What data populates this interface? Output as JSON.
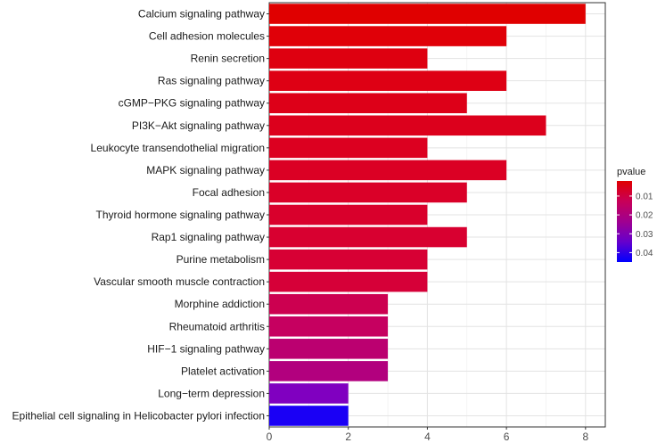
{
  "chart_data": {
    "type": "bar",
    "orientation": "horizontal",
    "categories": [
      "Calcium signaling pathway",
      "Cell adhesion molecules",
      "Renin secretion",
      "Ras signaling pathway",
      "cGMP−PKG signaling pathway",
      "PI3K−Akt signaling pathway",
      "Leukocyte transendothelial migration",
      "MAPK signaling pathway",
      "Focal adhesion",
      "Thyroid hormone signaling pathway",
      "Rap1 signaling pathway",
      "Purine metabolism",
      "Vascular smooth muscle contraction",
      "Morphine addiction",
      "Rheumatoid arthritis",
      "HIF−1 signaling pathway",
      "Platelet activation",
      "Long−term depression",
      "Epithelial cell signaling in Helicobacter pylori infection"
    ],
    "values": [
      8,
      6,
      4,
      6,
      5,
      7,
      4,
      6,
      5,
      4,
      5,
      4,
      4,
      3,
      3,
      3,
      3,
      2,
      2
    ],
    "bar_colors": [
      "#e00000",
      "#e00008",
      "#de0010",
      "#de0014",
      "#dd0018",
      "#dc001c",
      "#dc0020",
      "#db0024",
      "#da0028",
      "#d9002c",
      "#d80030",
      "#d70034",
      "#d60038",
      "#cc0050",
      "#c60060",
      "#bb0070",
      "#b2007e",
      "#8000c0",
      "#1a00f5"
    ],
    "xlim": [
      0,
      8.5
    ],
    "xticks": [
      0,
      2,
      4,
      6,
      8
    ],
    "xlabel": "",
    "ylabel": "",
    "grid": true,
    "legend": {
      "title": "pvalue",
      "ticks": [
        "0.01",
        "0.02",
        "0.03",
        "0.04"
      ],
      "tick_values": [
        0.01,
        0.02,
        0.03,
        0.04
      ],
      "range": [
        0.002,
        0.045
      ],
      "colors": [
        "#e00000",
        "#c80058",
        "#a00090",
        "#6600cc",
        "#0000ff"
      ],
      "placement": "right"
    }
  }
}
